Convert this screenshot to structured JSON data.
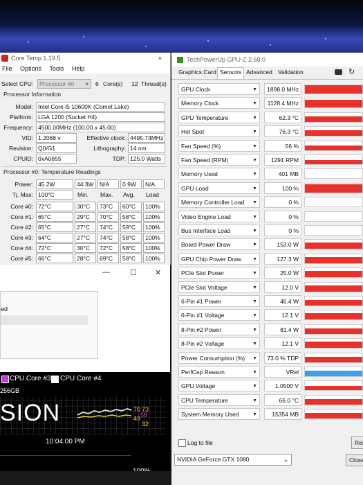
{
  "coretemp": {
    "title": "Core Temp 1.19.5",
    "close_glyph": "×",
    "menu": [
      "File",
      "Options",
      "Tools",
      "Help"
    ],
    "select_cpu_label": "Select CPU:",
    "select_cpu_value": "Processor #0",
    "cores_value": "6",
    "cores_label": "Core(s)",
    "threads_value": "12",
    "threads_label": "Thread(s)",
    "proc_info_label": "Processor Information",
    "model_label": "Model:",
    "model_value": "Intel Core i5 10600K (Comet Lake)",
    "platform_label": "Platform:",
    "platform_value": "LGA 1200 (Socket H4)",
    "frequency_label": "Frequency:",
    "frequency_value": "4500.00MHz (100.00 x 45.00)",
    "vid_label": "VID:",
    "vid_value": "1.2068 v",
    "eff_clock_label": "Effective clock:",
    "eff_clock_value": "4495.73MHz",
    "revision_label": "Revision:",
    "revision_value": "Q0/G1",
    "litho_label": "Lithography:",
    "litho_value": "14 nm",
    "cpuid_label": "CPUID:",
    "cpuid_value": "0xA0655",
    "tdp_label": "TDP:",
    "tdp_value": "125.0 Watts",
    "temps_label": "Processor #0: Temperature Readings",
    "power_label": "Power:",
    "power_values": [
      "45.2W",
      "44.3W",
      "N/A",
      "0.9W",
      "N/A"
    ],
    "tjmax_label": "Tj. Max:",
    "tjmax_value": "100°C",
    "col_headers": [
      "Min.",
      "Max.",
      "Avg.",
      "Load"
    ],
    "cores": [
      {
        "label": "Core #0:",
        "temp": "72°C",
        "min": "30°C",
        "max": "73°C",
        "avg": "60°C",
        "load": "100%"
      },
      {
        "label": "Core #1:",
        "temp": "65°C",
        "min": "29°C",
        "max": "70°C",
        "avg": "58°C",
        "load": "100%"
      },
      {
        "label": "Core #2:",
        "temp": "65°C",
        "min": "27°C",
        "max": "74°C",
        "avg": "59°C",
        "load": "100%"
      },
      {
        "label": "Core #3:",
        "temp": "64°C",
        "min": "27°C",
        "max": "74°C",
        "avg": "58°C",
        "load": "100%"
      },
      {
        "label": "Core #4:",
        "temp": "72°C",
        "min": "30°C",
        "max": "72°C",
        "avg": "58°C",
        "load": "100%"
      },
      {
        "label": "Core #5:",
        "temp": "66°C",
        "min": "28°C",
        "max": "69°C",
        "avg": "58°C",
        "load": "100%"
      }
    ]
  },
  "lower_window": {
    "minimize_glyph": "—",
    "maximize_glyph": "☐",
    "close_glyph": "✕",
    "list_text": "ed"
  },
  "monitor": {
    "legend": [
      "CPU Core #3",
      "CPU Core #4"
    ],
    "size_text": "256GB",
    "big_text": "SION",
    "readouts": [
      "70",
      "73",
      "58",
      "49",
      "32"
    ],
    "time": "10:04:00 PM",
    "percent": "100%"
  },
  "gpuz": {
    "title": "TechPowerUp GPU-Z 2.68.0",
    "tabs": [
      "Graphics Card",
      "Sensors",
      "Advanced",
      "Validation"
    ],
    "active_tab": "Sensors",
    "bar_color": "#e8312a",
    "perfcap_color": "#3aa0e8",
    "sensors": [
      {
        "name": "GPU Clock",
        "value": "1898.0 MHz",
        "level": 0.9
      },
      {
        "name": "Memory Clock",
        "value": "1128.4 MHz",
        "level": 0.9
      },
      {
        "name": "GPU Temperature",
        "value": "62.3 °C",
        "level": 0.6
      },
      {
        "name": "Hot Spot",
        "value": "76.3 °C",
        "level": 0.6
      },
      {
        "name": "Fan Speed (%)",
        "value": "56 %",
        "level": 0.5
      },
      {
        "name": "Fan Speed (RPM)",
        "value": "1291 RPM",
        "level": 0.5
      },
      {
        "name": "Memory Used",
        "value": "401 MB",
        "level": 0.05
      },
      {
        "name": "GPU Load",
        "value": "100 %",
        "level": 0.9
      },
      {
        "name": "Memory Controller Load",
        "value": "0 %",
        "level": 0
      },
      {
        "name": "Video Engine Load",
        "value": "0 %",
        "level": 0
      },
      {
        "name": "Bus Interface Load",
        "value": "0 %",
        "level": 0
      },
      {
        "name": "Board Power Draw",
        "value": "153.0 W",
        "level": 0.7
      },
      {
        "name": "GPU Chip Power Draw",
        "value": "127.3 W",
        "level": 0.7
      },
      {
        "name": "PCIe Slot Power",
        "value": "25.0 W",
        "level": 0.7
      },
      {
        "name": "PCIe Slot Voltage",
        "value": "12.0 V",
        "level": 0.7
      },
      {
        "name": "6-Pin #1 Power",
        "value": "46.4 W",
        "level": 0.6
      },
      {
        "name": "6-Pin #1 Voltage",
        "value": "12.1 V",
        "level": 0.7
      },
      {
        "name": "8-Pin #2 Power",
        "value": "81.4 W",
        "level": 0.6
      },
      {
        "name": "8-Pin #2 Voltage",
        "value": "12.1 V",
        "level": 0.7
      },
      {
        "name": "Power Consumption (%)",
        "value": "73.0 % TDP",
        "level": 0.6
      },
      {
        "name": "PerfCap Reason",
        "value": "VRel",
        "level": 0.6
      },
      {
        "name": "GPU Voltage",
        "value": "1.0500 V",
        "level": 0.5
      },
      {
        "name": "CPU Temperature",
        "value": "66.0 °C",
        "level": 0.6
      },
      {
        "name": "System Memory Used",
        "value": "15354 MB",
        "level": 0.6
      }
    ],
    "log_to_file": "Log to file",
    "reset_label": "Res",
    "gpu_select": "NVIDIA GeForce GTX 1080",
    "close_label": "Close"
  }
}
